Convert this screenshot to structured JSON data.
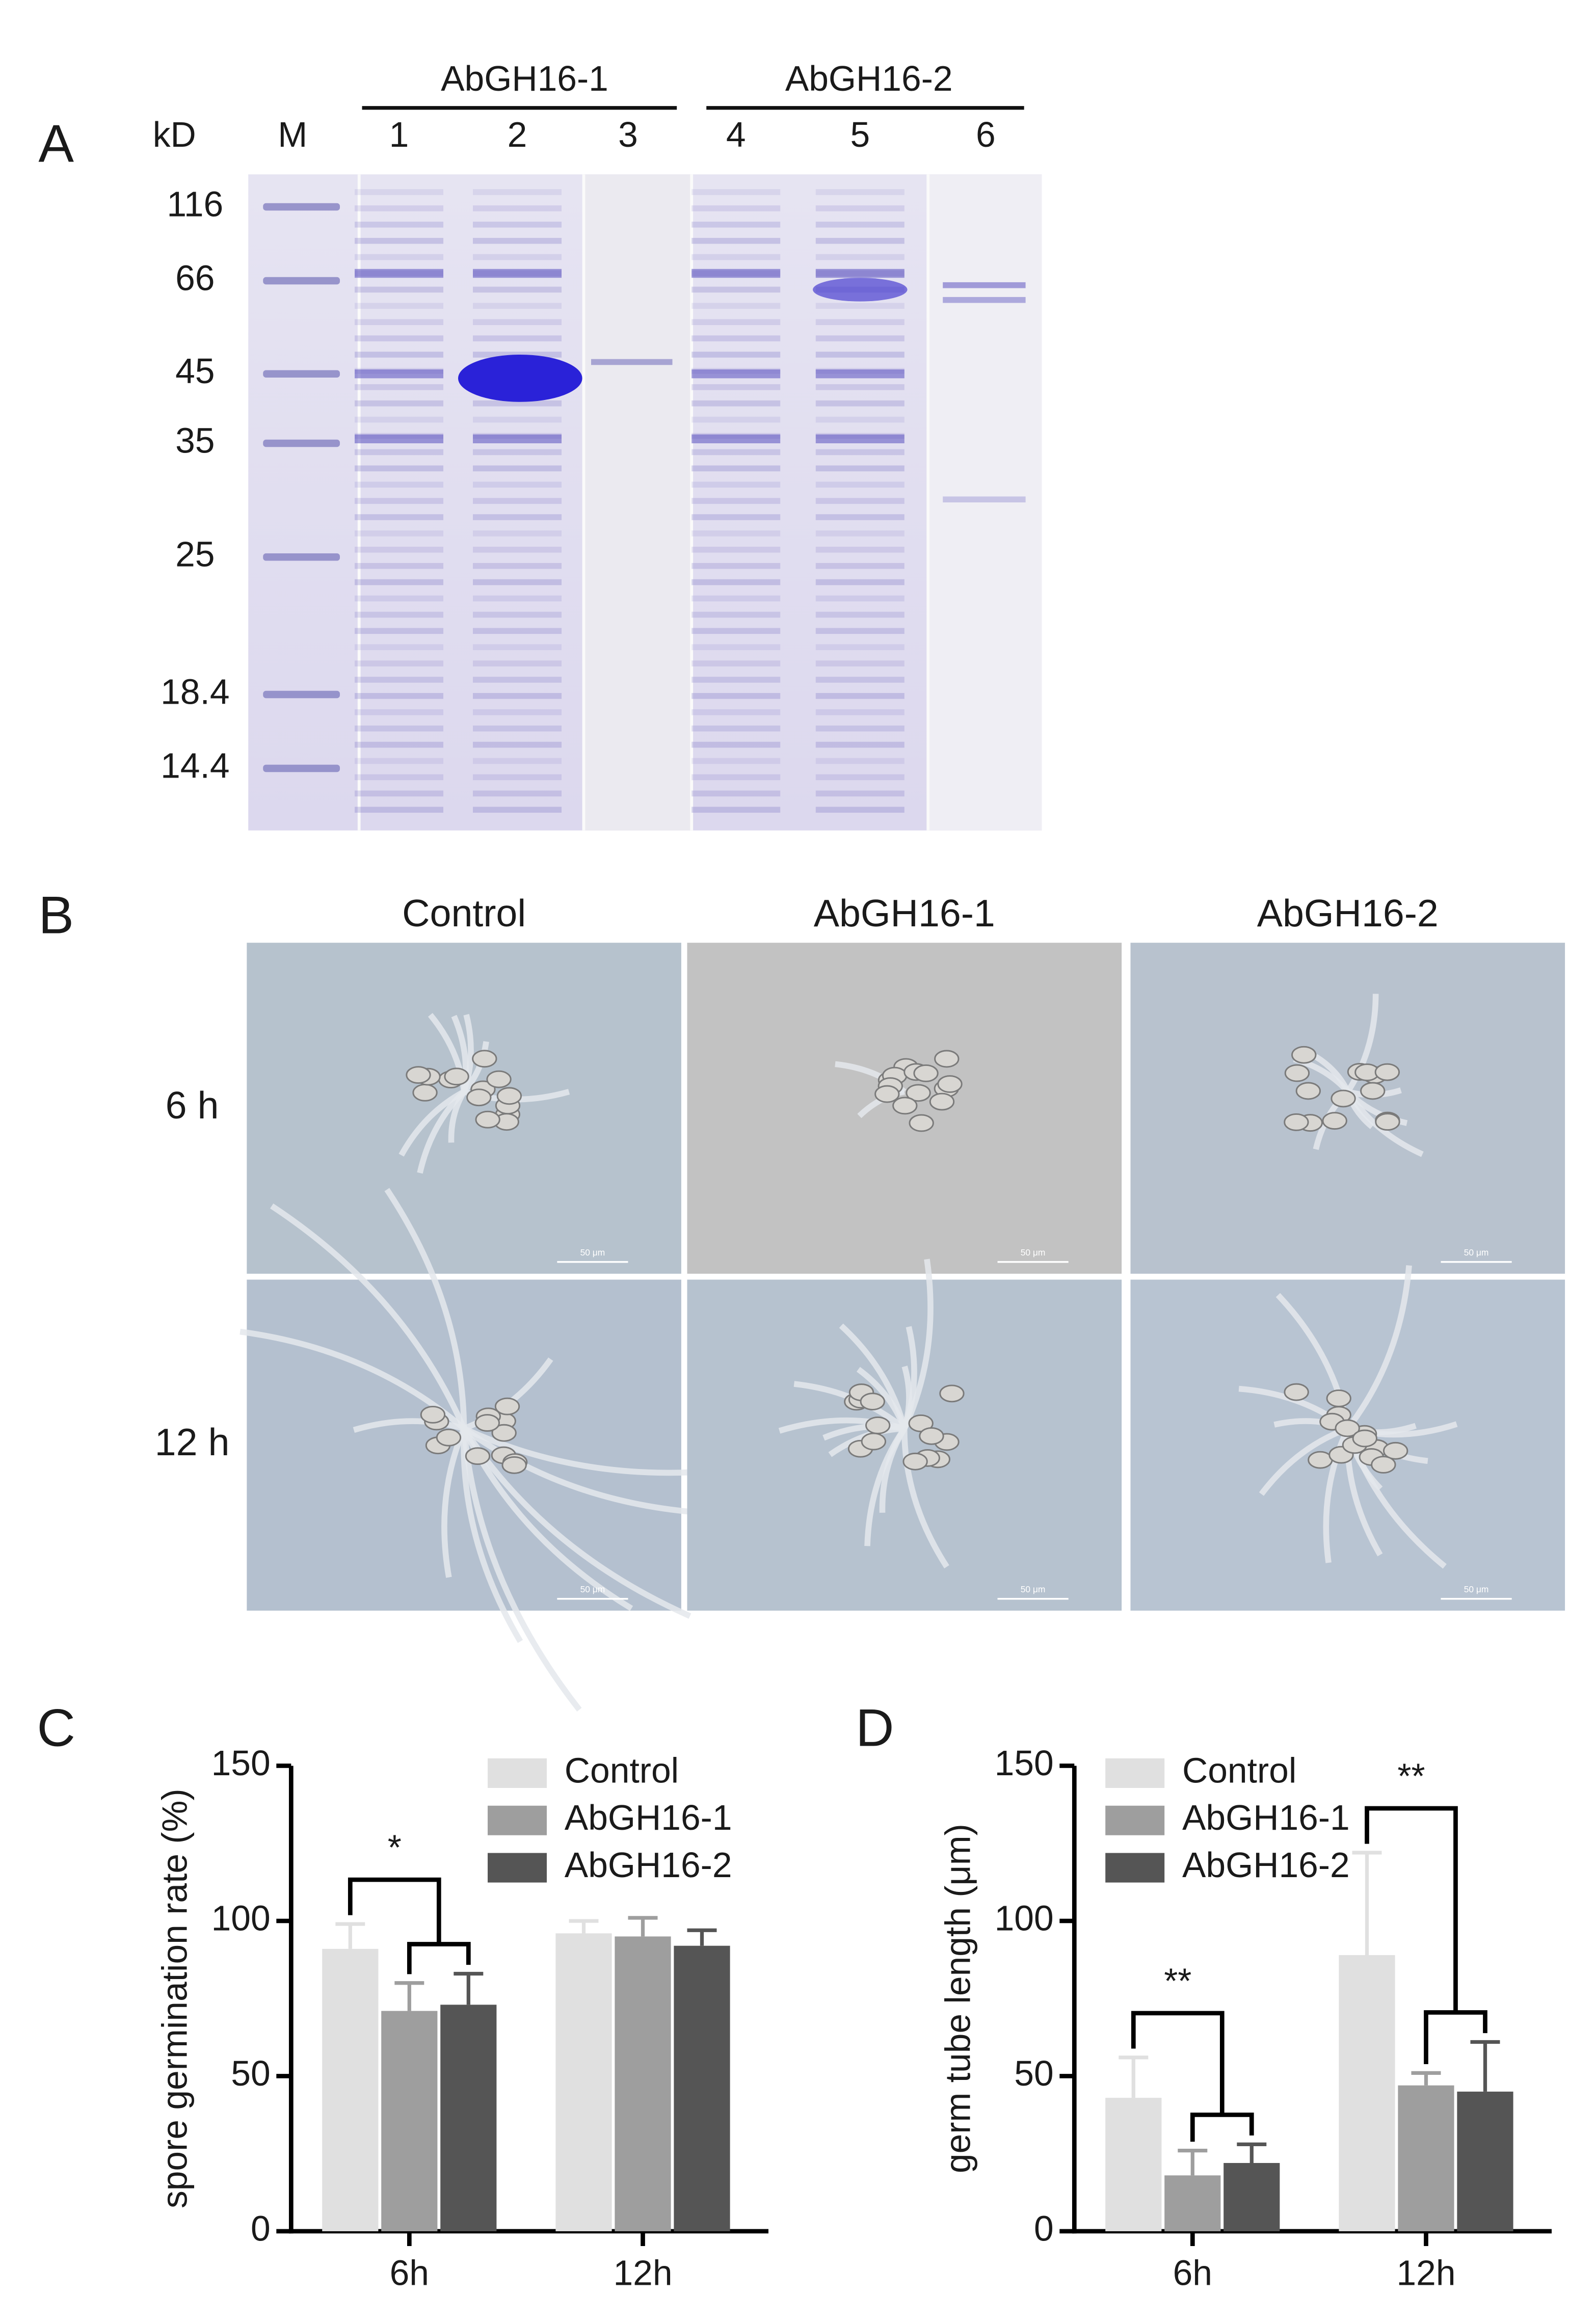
{
  "panel_labels": [
    "A",
    "B",
    "C",
    "D"
  ],
  "gel": {
    "unit_label": "kD",
    "marker_label": "M",
    "groups": [
      "AbGH16-1",
      "AbGH16-2"
    ],
    "lanes": [
      "1",
      "2",
      "3",
      "4",
      "5",
      "6"
    ],
    "markers": [
      116,
      66,
      45,
      35,
      25,
      18.4,
      14.4
    ]
  },
  "micrographs": {
    "columns": [
      "Control",
      "AbGH16-1",
      "AbGH16-2"
    ],
    "rows": [
      "6 h",
      "12 h"
    ],
    "scale_bar": "50 μm"
  },
  "chart_data": [
    {
      "type": "bar",
      "y_label": "spore germination rate (%)",
      "categories": [
        "6h",
        "12h"
      ],
      "series": [
        {
          "name": "Control",
          "color": "#e0e0e0",
          "values": [
            91,
            96
          ],
          "errors": [
            8,
            4
          ]
        },
        {
          "name": "AbGH16-1",
          "color": "#9e9e9e",
          "values": [
            71,
            95
          ],
          "errors": [
            9,
            6
          ]
        },
        {
          "name": "AbGH16-2",
          "color": "#555555",
          "values": [
            73,
            92
          ],
          "errors": [
            10,
            5
          ]
        }
      ],
      "ylim": [
        0,
        150
      ],
      "yticks": [
        0,
        50,
        100,
        150
      ],
      "legend": "upper right",
      "annotations": [
        {
          "text": "*",
          "category": 0
        }
      ]
    },
    {
      "type": "bar",
      "y_label": "germ tube length (μm)",
      "categories": [
        "6h",
        "12h"
      ],
      "series": [
        {
          "name": "Control",
          "color": "#e0e0e0",
          "values": [
            43,
            89
          ],
          "errors": [
            13,
            33
          ]
        },
        {
          "name": "AbGH16-1",
          "color": "#9e9e9e",
          "values": [
            18,
            47
          ],
          "errors": [
            8,
            4
          ]
        },
        {
          "name": "AbGH16-2",
          "color": "#555555",
          "values": [
            22,
            45
          ],
          "errors": [
            6,
            16
          ]
        }
      ],
      "ylim": [
        0,
        150
      ],
      "yticks": [
        0,
        50,
        100,
        150
      ],
      "legend": "upper left",
      "annotations": [
        {
          "text": "**",
          "category": 0
        },
        {
          "text": "**",
          "category": 1
        }
      ]
    }
  ]
}
